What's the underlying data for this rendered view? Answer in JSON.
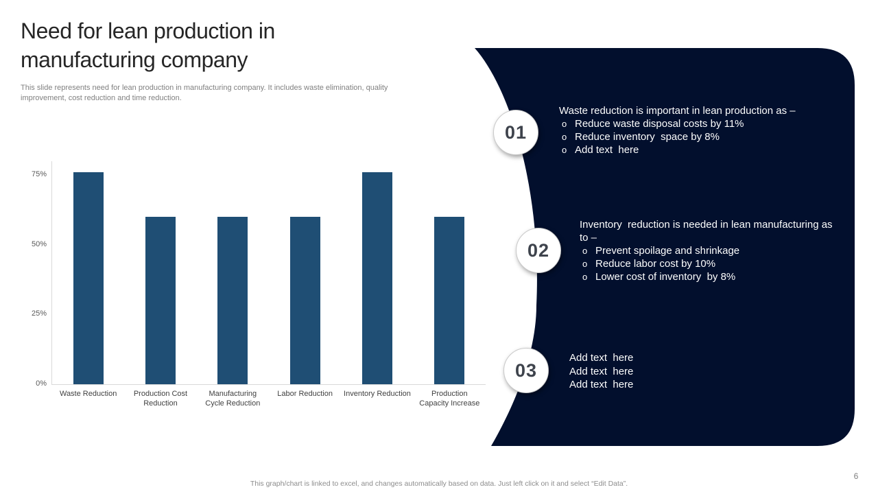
{
  "slide": {
    "title": "Need for lean production in manufacturing company",
    "subtitle": "This slide represents need for lean production in manufacturing company. It includes waste elimination, quality improvement, cost reduction and time reduction.",
    "footer_note": "This graph/chart is linked to excel,  and changes automatically based on data. Just left click on it and select “Edit Data”.",
    "page_number": "6"
  },
  "colors": {
    "bar": "#1F4E74",
    "panel": "#020F2D",
    "title_text": "#262626",
    "muted_text": "#808080",
    "panel_text": "#FDFDFD",
    "axis_line": "#D9D9D9",
    "tick_text": "#595959",
    "category_text": "#404040"
  },
  "chart_data": {
    "type": "bar",
    "title": "",
    "xlabel": "",
    "ylabel": "",
    "categories": [
      "Waste Reduction",
      "Production Cost Reduction",
      "Manufacturing Cycle Reduction",
      "Labor Reduction",
      "Inventory Reduction",
      "Production Capacity Increase"
    ],
    "values": [
      76,
      60,
      60,
      60,
      76,
      60
    ],
    "value_unit": "%",
    "ylim": [
      0,
      80
    ],
    "yticks": [
      {
        "value": 0,
        "label": "0%"
      },
      {
        "value": 25,
        "label": "25%"
      },
      {
        "value": 50,
        "label": "50%"
      },
      {
        "value": 75,
        "label": "75%"
      }
    ],
    "grid": false,
    "legend": "none",
    "bar_color": "#1F4E74"
  },
  "points": [
    {
      "number": "01",
      "heading": "Waste reduction is important in lean production as –",
      "bullet_marker": "o",
      "bullets": [
        "Reduce waste disposal costs by 11%",
        "Reduce inventory  space by 8%",
        "Add text  here"
      ]
    },
    {
      "number": "02",
      "heading": "Inventory  reduction is needed in lean manufacturing as to –",
      "bullet_marker": "o",
      "bullets": [
        "Prevent spoilage and shrinkage",
        "Reduce labor cost by 10%",
        "Lower cost of inventory  by 8%"
      ]
    },
    {
      "number": "03",
      "heading": "",
      "bullet_marker": "",
      "bullets": [
        "Add text  here",
        "Add text  here",
        "Add text  here"
      ]
    }
  ]
}
